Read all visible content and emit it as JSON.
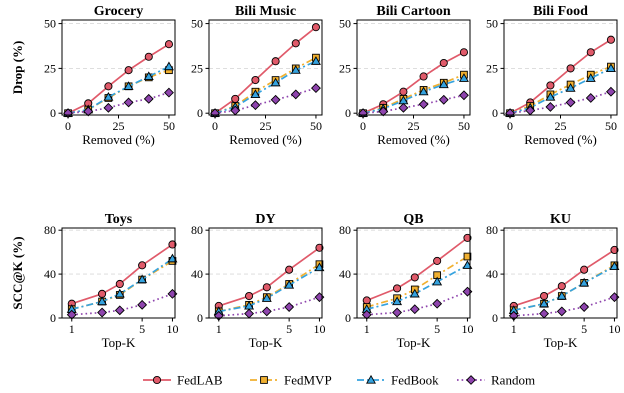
{
  "chart_data": [
    {
      "type": "line",
      "title": "Grocery",
      "xlabel": "Removed (%)",
      "ylabel": "Drop (%)",
      "x": [
        0,
        10,
        20,
        30,
        40,
        50
      ],
      "xlim": [
        -3,
        53
      ],
      "ylim": [
        -1,
        52
      ],
      "xticks": [
        0,
        25,
        50
      ],
      "yticks": [
        0,
        25,
        50
      ],
      "grid": "horizontal dashed",
      "series": [
        {
          "name": "FedLAB",
          "values": [
            0,
            5.5,
            15,
            24,
            31.5,
            38.5
          ]
        },
        {
          "name": "FedMVP",
          "values": [
            0,
            2,
            8.5,
            15,
            20,
            24
          ]
        },
        {
          "name": "FedBook",
          "values": [
            0,
            2,
            9,
            15,
            20.5,
            26
          ]
        },
        {
          "name": "Random",
          "values": [
            0,
            1,
            3,
            6,
            8,
            11.5
          ]
        }
      ]
    },
    {
      "type": "line",
      "title": "Bili Music",
      "xlabel": "Removed (%)",
      "ylabel": "",
      "x": [
        0,
        10,
        20,
        30,
        40,
        50
      ],
      "xlim": [
        -3,
        53
      ],
      "ylim": [
        -1,
        52
      ],
      "xticks": [
        0,
        25,
        50
      ],
      "yticks": [
        0,
        25,
        50
      ],
      "grid": "horizontal dashed",
      "series": [
        {
          "name": "FedLAB",
          "values": [
            0,
            8,
            18.5,
            29,
            39,
            48
          ]
        },
        {
          "name": "FedMVP",
          "values": [
            0,
            4,
            12,
            18.5,
            25,
            31
          ]
        },
        {
          "name": "FedBook",
          "values": [
            0,
            3.5,
            10.5,
            17,
            24,
            29
          ]
        },
        {
          "name": "Random",
          "values": [
            0,
            1.5,
            4.5,
            7.5,
            10.5,
            14
          ]
        }
      ]
    },
    {
      "type": "line",
      "title": "Bili Cartoon",
      "xlabel": "Removed (%)",
      "ylabel": "",
      "x": [
        0,
        10,
        20,
        30,
        40,
        50
      ],
      "xlim": [
        -3,
        53
      ],
      "ylim": [
        -1,
        52
      ],
      "xticks": [
        0,
        25,
        50
      ],
      "yticks": [
        0,
        25,
        50
      ],
      "grid": "horizontal dashed",
      "series": [
        {
          "name": "FedLAB",
          "values": [
            0,
            5,
            12,
            20.5,
            28,
            34
          ]
        },
        {
          "name": "FedMVP",
          "values": [
            0,
            3,
            8,
            13,
            17,
            21.5
          ]
        },
        {
          "name": "FedBook",
          "values": [
            0,
            2.5,
            7,
            12,
            16,
            19.5
          ]
        },
        {
          "name": "Random",
          "values": [
            0,
            1,
            3,
            5,
            7.5,
            10
          ]
        }
      ]
    },
    {
      "type": "line",
      "title": "Bili Food",
      "xlabel": "Removed (%)",
      "ylabel": "",
      "x": [
        0,
        10,
        20,
        30,
        40,
        50
      ],
      "xlim": [
        -3,
        53
      ],
      "ylim": [
        -1,
        52
      ],
      "xticks": [
        0,
        25,
        50
      ],
      "yticks": [
        0,
        25,
        50
      ],
      "grid": "horizontal dashed",
      "series": [
        {
          "name": "FedLAB",
          "values": [
            0,
            6,
            15.5,
            25,
            34,
            41
          ]
        },
        {
          "name": "FedMVP",
          "values": [
            0,
            4,
            10.5,
            16,
            21.5,
            26
          ]
        },
        {
          "name": "FedBook",
          "values": [
            0,
            3,
            9,
            14,
            19.5,
            25
          ]
        },
        {
          "name": "Random",
          "values": [
            0,
            1.5,
            3.5,
            6,
            8.5,
            12
          ]
        }
      ]
    },
    {
      "type": "line",
      "title": "Toys",
      "xlabel": "Top-K",
      "ylabel": "SCC@K (%)",
      "x": [
        1,
        2,
        3,
        5,
        10
      ],
      "xlim": [
        0.8,
        10.6
      ],
      "ylim": [
        0,
        82
      ],
      "xscale": "log",
      "xticks": [
        1,
        5,
        10
      ],
      "yticks": [
        0,
        40,
        80
      ],
      "grid": "horizontal dashed",
      "series": [
        {
          "name": "FedLAB",
          "values": [
            13,
            22,
            31,
            48,
            67
          ]
        },
        {
          "name": "FedMVP",
          "values": [
            8,
            15,
            21,
            35,
            52
          ]
        },
        {
          "name": "FedBook",
          "values": [
            8,
            15,
            22,
            35,
            54
          ]
        },
        {
          "name": "Random",
          "values": [
            3,
            5,
            7,
            12,
            22
          ]
        }
      ]
    },
    {
      "type": "line",
      "title": "DY",
      "xlabel": "Top-K",
      "ylabel": "",
      "x": [
        1,
        2,
        3,
        5,
        10
      ],
      "xlim": [
        0.8,
        10.6
      ],
      "ylim": [
        0,
        82
      ],
      "xscale": "log",
      "xticks": [
        1,
        5,
        10
      ],
      "yticks": [
        0,
        40,
        80
      ],
      "grid": "horizontal dashed",
      "series": [
        {
          "name": "FedLAB",
          "values": [
            11,
            20,
            28,
            44,
            64
          ]
        },
        {
          "name": "FedMVP",
          "values": [
            6,
            12,
            19,
            31,
            49
          ]
        },
        {
          "name": "FedBook",
          "values": [
            6,
            11,
            18,
            30,
            46
          ]
        },
        {
          "name": "Random",
          "values": [
            2,
            4,
            6,
            10,
            19
          ]
        }
      ]
    },
    {
      "type": "line",
      "title": "QB",
      "xlabel": "Top-K",
      "ylabel": "",
      "x": [
        1,
        2,
        3,
        5,
        10
      ],
      "xlim": [
        0.8,
        10.6
      ],
      "ylim": [
        0,
        82
      ],
      "xscale": "log",
      "xticks": [
        1,
        5,
        10
      ],
      "yticks": [
        0,
        40,
        80
      ],
      "grid": "horizontal dashed",
      "series": [
        {
          "name": "FedLAB",
          "values": [
            16,
            27,
            37,
            52,
            73
          ]
        },
        {
          "name": "FedMVP",
          "values": [
            10,
            18,
            26,
            39,
            56
          ]
        },
        {
          "name": "FedBook",
          "values": [
            8,
            15,
            22,
            33,
            48
          ]
        },
        {
          "name": "Random",
          "values": [
            3,
            5,
            8,
            13,
            24
          ]
        }
      ]
    },
    {
      "type": "line",
      "title": "KU",
      "xlabel": "Top-K",
      "ylabel": "",
      "x": [
        1,
        2,
        3,
        5,
        10
      ],
      "xlim": [
        0.8,
        10.6
      ],
      "ylim": [
        0,
        82
      ],
      "xscale": "log",
      "xticks": [
        1,
        5,
        10
      ],
      "yticks": [
        0,
        40,
        80
      ],
      "grid": "horizontal dashed",
      "series": [
        {
          "name": "FedLAB",
          "values": [
            11,
            20,
            29,
            44,
            62
          ]
        },
        {
          "name": "FedMVP",
          "values": [
            7,
            13,
            20,
            32,
            48
          ]
        },
        {
          "name": "FedBook",
          "values": [
            7,
            13,
            20,
            32,
            47
          ]
        },
        {
          "name": "Random",
          "values": [
            2,
            4,
            6,
            10,
            19
          ]
        }
      ]
    }
  ],
  "legend": {
    "placement": "bottom-center",
    "items": [
      {
        "name": "FedLAB",
        "color": "#e05a6a",
        "marker": "circle",
        "dash": "solid"
      },
      {
        "name": "FedMVP",
        "color": "#f0b030",
        "marker": "square",
        "dash": "dashdot"
      },
      {
        "name": "FedBook",
        "color": "#35a3df",
        "marker": "triangle",
        "dash": "dashdot"
      },
      {
        "name": "Random",
        "color": "#8e44ad",
        "marker": "diamond",
        "dash": "dotted"
      }
    ]
  }
}
